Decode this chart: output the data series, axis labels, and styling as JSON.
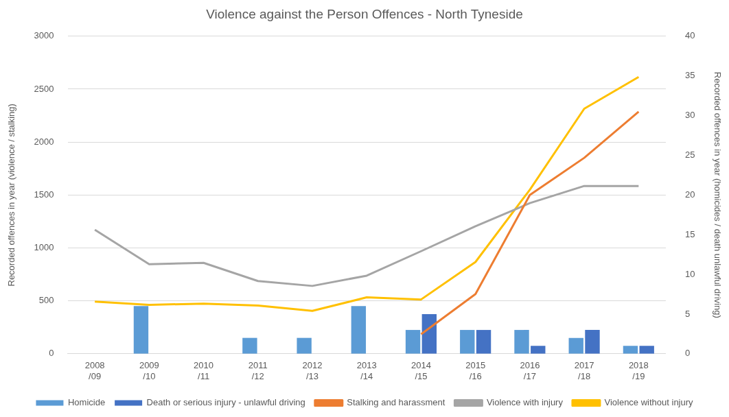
{
  "chart_data": {
    "type": "line",
    "title": "Violence against the Person Offences - North Tyneside",
    "ylabel": "Recorded offences in year (violence / stalking)",
    "y2label": "Recorded offences in year (homicides / death unlawful driving)",
    "categories": [
      "2008\n/09",
      "2009\n/10",
      "2010\n/11",
      "2011\n/12",
      "2012\n/13",
      "2013\n/14",
      "2014\n/15",
      "2015\n/16",
      "2016\n/17",
      "2017\n/18",
      "2018\n/19"
    ],
    "series": [
      {
        "name": "Homicide",
        "type": "bar",
        "axis": "y2",
        "color": "#5b9bd5",
        "values": [
          0,
          6,
          0,
          2,
          2,
          6,
          3,
          3,
          3,
          2,
          1
        ]
      },
      {
        "name": "Death or serious injury - unlawful driving",
        "type": "bar",
        "axis": "y2",
        "color": "#4472c4",
        "values": [
          0,
          0,
          0,
          0,
          0,
          0,
          5,
          3,
          1,
          3,
          1
        ]
      },
      {
        "name": "Stalking and harassment",
        "color": "#ed7d31",
        "values": [
          null,
          null,
          null,
          null,
          null,
          null,
          185,
          564,
          1500,
          1851,
          2287
        ]
      },
      {
        "name": "Violence with injury",
        "color": "#a5a5a5",
        "values": [
          1172,
          846,
          859,
          687,
          641,
          738,
          969,
          1205,
          1423,
          1585,
          1585
        ]
      },
      {
        "name": "Violence without injury",
        "color": "#ffc000",
        "values": [
          492,
          462,
          474,
          456,
          405,
          533,
          513,
          867,
          1550,
          2315,
          2615
        ]
      }
    ],
    "ylim": [
      0,
      3000
    ],
    "yticks": [
      0,
      500,
      1000,
      1500,
      2000,
      2500,
      3000
    ],
    "y2lim": [
      0,
      40
    ],
    "y2ticks": [
      0,
      5,
      10,
      15,
      20,
      25,
      30,
      35,
      40
    ],
    "grid": "y",
    "legend": "bottom",
    "marker": "none",
    "line_style": "solid"
  }
}
